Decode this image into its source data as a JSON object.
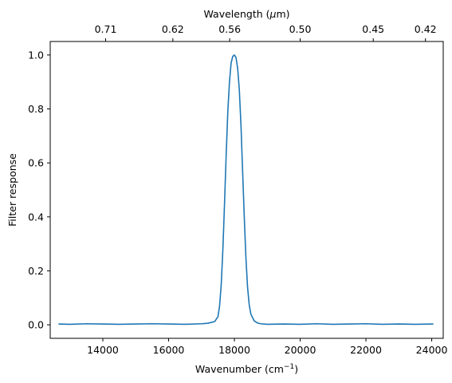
{
  "chart_data": {
    "type": "line",
    "xlabel_main": "Wavenumber (cm",
    "xlabel_sup": "−1",
    "xlabel_close": ")",
    "x2label_main": "Wavelength (",
    "x2label_mu": "μ",
    "x2label_rest": "m)",
    "ylabel": "Filter response",
    "xlim": [
      12400,
      24350
    ],
    "ylim": [
      -0.05,
      1.05
    ],
    "x_ticks": [
      14000,
      16000,
      18000,
      20000,
      22000,
      24000
    ],
    "x_tick_labels": [
      "14000",
      "16000",
      "18000",
      "20000",
      "22000",
      "24000"
    ],
    "y_ticks": [
      0.0,
      0.2,
      0.4,
      0.6,
      0.8,
      1.0
    ],
    "y_tick_labels": [
      "0.0",
      "0.2",
      "0.4",
      "0.6",
      "0.8",
      "1.0"
    ],
    "top_ticks_wavenumber": [
      14084.5,
      16129.0,
      17857.1,
      20000.0,
      22222.2,
      23809.5
    ],
    "top_tick_labels": [
      "0.71",
      "0.62",
      "0.56",
      "0.50",
      "0.45",
      "0.42"
    ],
    "grid": false,
    "line_color": "#1f77b4",
    "series": [
      {
        "x": [
          12650,
          13000,
          13500,
          14000,
          14500,
          15000,
          15500,
          16000,
          16500,
          17000,
          17200,
          17400,
          17500,
          17550,
          17600,
          17650,
          17700,
          17750,
          17800,
          17850,
          17900,
          17950,
          18000,
          18050,
          18100,
          18150,
          18200,
          18250,
          18300,
          18350,
          18400,
          18450,
          18500,
          18600,
          18700,
          18800,
          19000,
          19500,
          20000,
          20500,
          21000,
          21500,
          22000,
          22500,
          23000,
          23500,
          24050
        ],
        "y": [
          0.003,
          0.002,
          0.004,
          0.003,
          0.002,
          0.003,
          0.004,
          0.003,
          0.002,
          0.004,
          0.006,
          0.012,
          0.03,
          0.07,
          0.15,
          0.28,
          0.45,
          0.63,
          0.79,
          0.9,
          0.97,
          0.995,
          1.0,
          0.99,
          0.95,
          0.87,
          0.74,
          0.57,
          0.4,
          0.25,
          0.14,
          0.075,
          0.04,
          0.015,
          0.007,
          0.004,
          0.002,
          0.003,
          0.002,
          0.004,
          0.002,
          0.003,
          0.004,
          0.002,
          0.003,
          0.002,
          0.003
        ]
      }
    ]
  }
}
